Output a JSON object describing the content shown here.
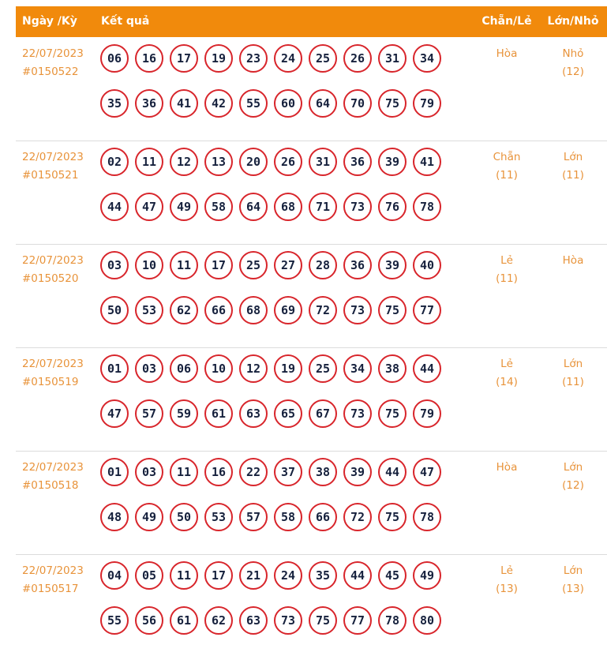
{
  "header": {
    "columns": [
      "Ngày /Kỳ",
      "Kết quả",
      "Chẵn/Lẻ",
      "Lớn/Nhỏ"
    ]
  },
  "table": {
    "rows": [
      {
        "date": "22/07/2023",
        "draw": "#0150522",
        "numbers": [
          "06",
          "16",
          "17",
          "19",
          "23",
          "24",
          "25",
          "26",
          "31",
          "34",
          "35",
          "36",
          "41",
          "42",
          "55",
          "60",
          "64",
          "70",
          "75",
          "79"
        ],
        "even_odd": {
          "label": "Hòa"
        },
        "big_small": {
          "label": "Nhỏ",
          "count": "(12)"
        }
      },
      {
        "date": "22/07/2023",
        "draw": "#0150521",
        "numbers": [
          "02",
          "11",
          "12",
          "13",
          "20",
          "26",
          "31",
          "36",
          "39",
          "41",
          "44",
          "47",
          "49",
          "58",
          "64",
          "68",
          "71",
          "73",
          "76",
          "78"
        ],
        "even_odd": {
          "label": "Chẵn",
          "count": "(11)"
        },
        "big_small": {
          "label": "Lớn",
          "count": "(11)"
        }
      },
      {
        "date": "22/07/2023",
        "draw": "#0150520",
        "numbers": [
          "03",
          "10",
          "11",
          "17",
          "25",
          "27",
          "28",
          "36",
          "39",
          "40",
          "50",
          "53",
          "62",
          "66",
          "68",
          "69",
          "72",
          "73",
          "75",
          "77"
        ],
        "even_odd": {
          "label": "Lẻ",
          "count": "(11)"
        },
        "big_small": {
          "label": "Hòa"
        }
      },
      {
        "date": "22/07/2023",
        "draw": "#0150519",
        "numbers": [
          "01",
          "03",
          "06",
          "10",
          "12",
          "19",
          "25",
          "34",
          "38",
          "44",
          "47",
          "57",
          "59",
          "61",
          "63",
          "65",
          "67",
          "73",
          "75",
          "79"
        ],
        "even_odd": {
          "label": "Lẻ",
          "count": "(14)"
        },
        "big_small": {
          "label": "Lớn",
          "count": "(11)"
        }
      },
      {
        "date": "22/07/2023",
        "draw": "#0150518",
        "numbers": [
          "01",
          "03",
          "11",
          "16",
          "22",
          "37",
          "38",
          "39",
          "44",
          "47",
          "48",
          "49",
          "50",
          "53",
          "57",
          "58",
          "66",
          "72",
          "75",
          "78"
        ],
        "even_odd": {
          "label": "Hòa"
        },
        "big_small": {
          "label": "Lớn",
          "count": "(12)"
        }
      },
      {
        "date": "22/07/2023",
        "draw": "#0150517",
        "numbers": [
          "04",
          "05",
          "11",
          "17",
          "21",
          "24",
          "35",
          "44",
          "45",
          "49",
          "55",
          "56",
          "61",
          "62",
          "63",
          "73",
          "75",
          "77",
          "78",
          "80"
        ],
        "even_odd": {
          "label": "Lẻ",
          "count": "(13)"
        },
        "big_small": {
          "label": "Lớn",
          "count": "(13)"
        }
      }
    ]
  }
}
